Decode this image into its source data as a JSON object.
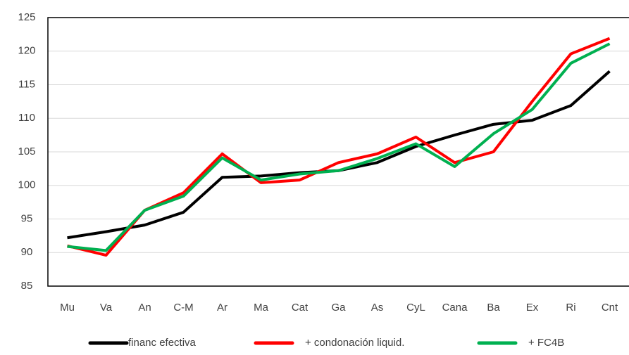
{
  "chart_data": {
    "type": "line",
    "categories": [
      "Mu",
      "Va",
      "An",
      "C-M",
      "Ar",
      "Ma",
      "Cat",
      "Ga",
      "As",
      "CyL",
      "Cana",
      "Ba",
      "Ex",
      "Ri",
      "Cnt"
    ],
    "series": [
      {
        "name": "financ efectiva",
        "color": "#000000",
        "values": [
          92.2,
          93.1,
          94.1,
          96.0,
          101.2,
          101.4,
          101.9,
          102.2,
          103.4,
          105.8,
          107.5,
          109.1,
          109.7,
          111.9,
          117.0
        ]
      },
      {
        "name": "+ condonación liquid.",
        "color": "#ff0000",
        "values": [
          91.0,
          89.6,
          96.3,
          98.9,
          104.7,
          100.4,
          100.8,
          103.4,
          104.7,
          107.2,
          103.4,
          105.0,
          112.5,
          119.6,
          121.9
        ]
      },
      {
        "name": "+ FC4B",
        "color": "#00b050",
        "values": [
          90.9,
          90.3,
          96.3,
          98.4,
          104.1,
          100.8,
          101.7,
          102.2,
          104.0,
          106.2,
          102.8,
          107.7,
          111.3,
          118.2,
          121.1
        ]
      }
    ],
    "ylim": [
      85,
      125
    ],
    "yticks": [
      85,
      90,
      95,
      100,
      105,
      110,
      115,
      120,
      125
    ],
    "grid": true,
    "legend": "bottom"
  }
}
